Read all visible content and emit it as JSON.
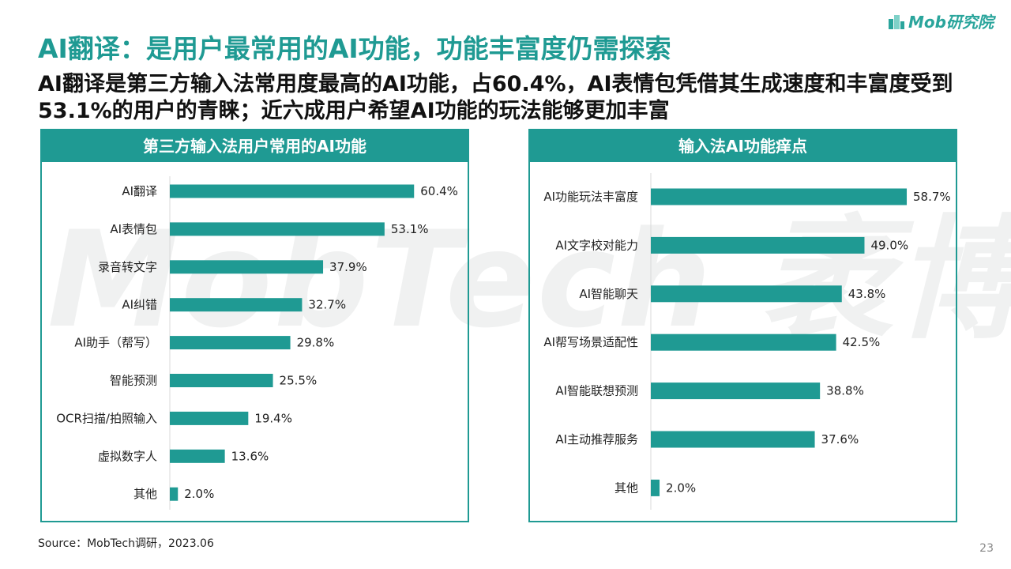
{
  "logo": {
    "text": "Mob研究院"
  },
  "watermark": {
    "text": "MobTech 袤博"
  },
  "title": "AI翻译：是用户最常用的AI功能，功能丰富度仍需探索",
  "subtitle": "AI翻译是第三方输入法常用度最高的AI功能，占60.4%，AI表情包凭借其生成速度和丰富度受到53.1%的用户的青睐；近六成用户希望AI功能的玩法能够更加丰富",
  "colors": {
    "accent": "#1f9a93",
    "bar": "#1f9a93"
  },
  "chart_data": [
    {
      "type": "bar",
      "orientation": "horizontal",
      "title": "第三方输入法用户常用的AI功能",
      "categories": [
        "AI翻译",
        "AI表情包",
        "录音转文字",
        "AI纠错",
        "AI助手（帮写）",
        "智能预测",
        "OCR扫描/拍照输入",
        "虚拟数字人",
        "其他"
      ],
      "values": [
        60.4,
        53.1,
        37.9,
        32.7,
        29.8,
        25.5,
        19.4,
        13.6,
        2.0
      ],
      "labels": [
        "60.4%",
        "53.1%",
        "37.9%",
        "32.7%",
        "29.8%",
        "25.5%",
        "19.4%",
        "13.6%",
        "2.0%"
      ],
      "unit": "%",
      "xlim": [
        0,
        70
      ]
    },
    {
      "type": "bar",
      "orientation": "horizontal",
      "title": "输入法AI功能痒点",
      "categories": [
        "AI功能玩法丰富度",
        "AI文字校对能力",
        "AI智能聊天",
        "AI帮写场景适配性",
        "AI智能联想预测",
        "AI主动推荐服务",
        "其他"
      ],
      "values": [
        58.7,
        49.0,
        43.8,
        42.5,
        38.8,
        37.6,
        2.0
      ],
      "labels": [
        "58.7%",
        "49.0%",
        "43.8%",
        "42.5%",
        "38.8%",
        "37.6%",
        "2.0%"
      ],
      "unit": "%",
      "xlim": [
        0,
        70
      ]
    }
  ],
  "footer": {
    "source": "Source：MobTech调研，2023.06",
    "page": "23"
  }
}
